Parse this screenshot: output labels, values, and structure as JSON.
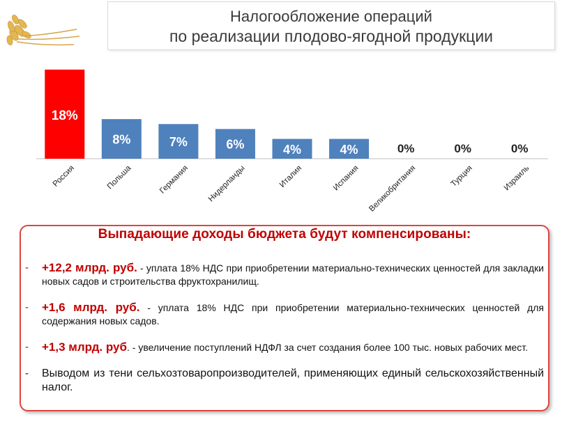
{
  "header": {
    "title_line1": "Налогообложение операций",
    "title_line2": "по реализации плодово-ягодной продукции"
  },
  "chart_data": {
    "type": "bar",
    "categories": [
      "Россия",
      "Польша",
      "Германия",
      "Нидерланды",
      "Италия",
      "Испания",
      "Великобритания",
      "Турция",
      "Израиль"
    ],
    "values": [
      18,
      8,
      7,
      6,
      4,
      4,
      0,
      0,
      0
    ],
    "value_labels": [
      "18%",
      "8%",
      "7%",
      "6%",
      "4%",
      "4%",
      "0%",
      "0%",
      "0%"
    ],
    "colors": [
      "#ff0000",
      "#4f81bd",
      "#4f81bd",
      "#4f81bd",
      "#4f81bd",
      "#4f81bd",
      "#4f81bd",
      "#4f81bd",
      "#4f81bd"
    ],
    "title": "",
    "xlabel": "",
    "ylabel": "",
    "ylim": [
      0,
      18
    ],
    "grid": false,
    "legend": "none"
  },
  "info_box": {
    "heading": "Выпадающие доходы бюджета будут компенсированы:",
    "items": [
      {
        "dash": "-",
        "amount": "+12,2 млрд. руб.",
        "text": " - уплата 18% НДС при приобретении материально-технических ценностей для закладки новых садов и строительства фруктохранилищ."
      },
      {
        "dash": "-",
        "amount": "+1,6 млрд. руб.",
        "text": " - уплата 18% НДС при приобретении материально-технических ценностей для содержания новых садов."
      },
      {
        "dash": "-",
        "amount": "+1,3 млрд. руб",
        "text": ". - увеличение поступлений НДФЛ за счет создания более 100 тыс. новых рабочих мест."
      },
      {
        "dash": "-",
        "amount": "",
        "text": "Выводом из тени сельхозтоваропроизводителей, применяющих единый сельскохозяйственный налог."
      }
    ]
  },
  "colors": {
    "accent_red": "#c00000",
    "bar_blue": "#4f81bd",
    "bar_red": "#ff0000"
  }
}
